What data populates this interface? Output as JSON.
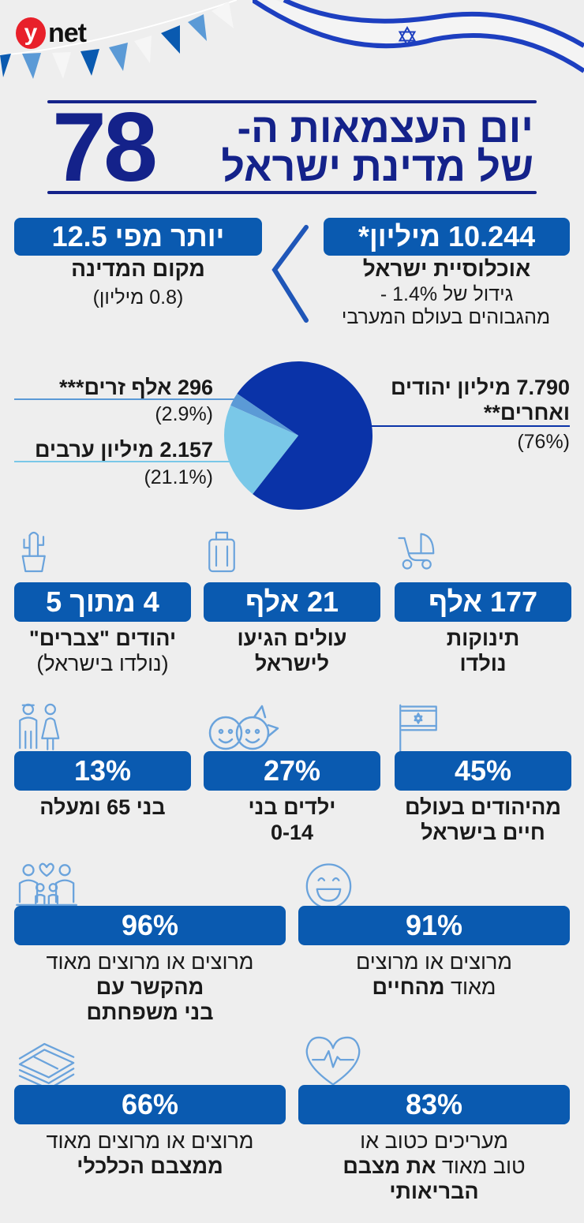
{
  "logo": {
    "text": "ynet",
    "letter": "y",
    "rest": "net"
  },
  "colors": {
    "box": "#0a5ab0",
    "title": "#14228a",
    "pie_jews": "#0a33a8",
    "pie_arabs": "#7ac8e8",
    "pie_foreigners": "#5b9ad6",
    "icon": "#6aa3dc"
  },
  "title": {
    "line1": "יום העצמאות ה-",
    "line2": "של מדינת ישראל",
    "number": "78"
  },
  "population": {
    "value": "10.244 מיליון*",
    "label": "אוכלוסיית ישראל",
    "growth": "גידול של 1.4% -",
    "growth_note": "מהגבוהים בעולם המערבי"
  },
  "founding": {
    "value": "יותר מפי 12.5",
    "label": "מקום המדינה",
    "note": "(0.8 מיליון)"
  },
  "chart_data": {
    "type": "pie",
    "slices": [
      {
        "name": "7.790 מיליון יהודים ואחרים**",
        "value": 76,
        "label_line1": "7.790 מיליון יהודים",
        "label_line2": "ואחרים**",
        "pct": "(76%)"
      },
      {
        "name": "2.157 מיליון ערבים",
        "value": 21.1,
        "label_line1": "2.157 מיליון ערבים",
        "pct": "(21.1%)"
      },
      {
        "name": "296 אלף זרים***",
        "value": 2.9,
        "label_line1": "296 אלף זרים***",
        "pct": "(2.9%)"
      }
    ]
  },
  "stats": [
    {
      "value": "177 אלף",
      "line1": "תינוקות",
      "line2": "נולדו",
      "icon": "stroller-icon"
    },
    {
      "value": "21 אלף",
      "line1": "עולים הגיעו",
      "line2": "לישראל",
      "icon": "suitcase-icon"
    },
    {
      "value": "4 מתוך 5",
      "line1": "יהודים \"צברים\"",
      "line2": "(נולדו בישראל)",
      "icon": "cactus-icon"
    },
    {
      "value": "45%",
      "line1": "מהיהודים בעולם",
      "line2": "חיים בישראל",
      "icon": "israel-flag-icon"
    },
    {
      "value": "27%",
      "line1": "ילדים בני",
      "line2": "0-14",
      "icon": "children-icon"
    },
    {
      "value": "13%",
      "line1": "בני 65 ומעלה",
      "line2": "",
      "icon": "elderly-couple-icon"
    }
  ],
  "survey": [
    {
      "value": "91%",
      "line1": "מרוצים או מרוצים",
      "line2a": "מאוד ",
      "line2b": "מהחיים",
      "icon": "smiley-icon"
    },
    {
      "value": "96%",
      "line1": "מרוצים או מרוצים מאוד",
      "line2": "מהקשר עם",
      "line3": "בני משפחתם",
      "icon": "family-icon"
    },
    {
      "value": "83%",
      "line1": "מעריכים כטוב או",
      "line2a": "טוב מאוד ",
      "line2b": "את מצבם",
      "line3": "הבריאותי",
      "icon": "heart-pulse-icon"
    },
    {
      "value": "66%",
      "line1": "מרוצים או מרוצים מאוד",
      "line2": "ממצבם הכלכלי",
      "icon": "money-stack-icon"
    }
  ]
}
